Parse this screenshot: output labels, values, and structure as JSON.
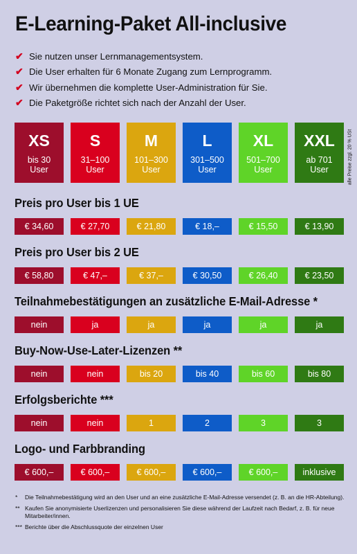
{
  "title": "E-Learning-Paket All-inclusive",
  "bullets": [
    "Sie nutzen unser Lernmanagementsystem.",
    "Die User erhalten für 6 Monate Zugang zum Lernprogramm.",
    "Wir übernehmen die komplette User-Administration für Sie.",
    "Die Paketgröße richtet sich nach der Anzahl der User."
  ],
  "check_symbol": "✔",
  "colors": [
    "#9d0e2c",
    "#d9001e",
    "#dba60f",
    "#0e5cc8",
    "#5fd428",
    "#2f7a14"
  ],
  "sizes": [
    {
      "name": "XS",
      "range": "bis 30",
      "unit": "User"
    },
    {
      "name": "S",
      "range": "31–100",
      "unit": "User"
    },
    {
      "name": "M",
      "range": "101–300",
      "unit": "User"
    },
    {
      "name": "L",
      "range": "301–500",
      "unit": "User"
    },
    {
      "name": "XL",
      "range": "501–700",
      "unit": "User"
    },
    {
      "name": "XXL",
      "range": "ab 701",
      "unit": "User"
    }
  ],
  "vat_note": "alle Preise zzgl. 20 % USt",
  "sections": [
    {
      "title": "Preis pro User bis 1 UE",
      "values": [
        "€ 34,60",
        "€ 27,70",
        "€ 21,80",
        "€ 18,–",
        "€ 15,50",
        "€ 13,90"
      ]
    },
    {
      "title": "Preis pro User bis 2 UE",
      "values": [
        "€ 58,80",
        "€ 47,–",
        "€ 37,–",
        "€ 30,50",
        "€ 26,40",
        "€ 23,50"
      ]
    },
    {
      "title": "Teilnahmebestätigungen an zusätzliche E-Mail-Adresse *",
      "values": [
        "nein",
        "ja",
        "ja",
        "ja",
        "ja",
        "ja"
      ]
    },
    {
      "title": "Buy-Now-Use-Later-Lizenzen **",
      "values": [
        "nein",
        "nein",
        "bis 20",
        "bis 40",
        "bis 60",
        "bis 80"
      ]
    },
    {
      "title": "Erfolgsberichte ***",
      "values": [
        "nein",
        "nein",
        "1",
        "2",
        "3",
        "3"
      ]
    },
    {
      "title": "Logo- und Farbbranding",
      "values": [
        "€ 600,–",
        "€ 600,–",
        "€ 600,–",
        "€ 600,–",
        "€ 600,–",
        "inklusive"
      ]
    }
  ],
  "footnotes": [
    {
      "mark": "*",
      "text": "Die Teilnahmebestätigung wird an den User und an eine zusätzliche E-Mail-Adresse versendet (z. B. an die HR-Abteilung)."
    },
    {
      "mark": "**",
      "text": "Kaufen Sie anonymisierte Userlizenzen und personalisieren Sie diese während der Laufzeit nach Bedarf, z. B. für neue Mitarbeiter/innen."
    },
    {
      "mark": "***",
      "text": "Berichte über die Abschlussquote der einzelnen User"
    }
  ]
}
